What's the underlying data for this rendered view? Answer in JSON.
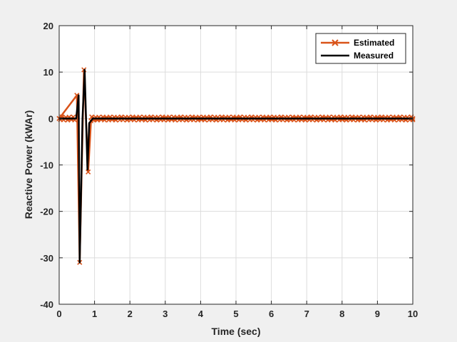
{
  "chart_data": {
    "type": "line",
    "title": "",
    "xlabel": "Time (sec)",
    "ylabel": "Reactive Power (kWAr)",
    "xlim": [
      0,
      10
    ],
    "ylim": [
      -40,
      20
    ],
    "xticks": [
      0,
      1,
      2,
      3,
      4,
      5,
      6,
      7,
      8,
      9,
      10
    ],
    "yticks": [
      -40,
      -30,
      -20,
      -10,
      0,
      10,
      20
    ],
    "grid": true,
    "legend_position": "top-right",
    "series": [
      {
        "name": "Estimated",
        "color": "#d95319",
        "marker": "x",
        "x": [
          0,
          0.5,
          0.58,
          0.7,
          0.82,
          0.9,
          1.5,
          2,
          3,
          4,
          5,
          6,
          7,
          8,
          9,
          10
        ],
        "y": [
          0,
          5,
          -31,
          10.5,
          -11.5,
          -0.5,
          0,
          0,
          0,
          0,
          0,
          0,
          0,
          0,
          0,
          0
        ]
      },
      {
        "name": "Measured",
        "color": "#000000",
        "x": [
          0,
          0.48,
          0.55,
          0.58,
          0.66,
          0.72,
          0.8,
          0.85,
          0.95,
          1.5,
          2,
          3,
          4,
          5,
          6,
          7,
          8,
          9,
          10
        ],
        "y": [
          0,
          0,
          5,
          -31,
          0,
          10.5,
          -11,
          -1,
          0,
          0,
          0,
          0,
          0,
          0,
          0,
          0,
          0,
          0,
          0
        ]
      }
    ]
  }
}
